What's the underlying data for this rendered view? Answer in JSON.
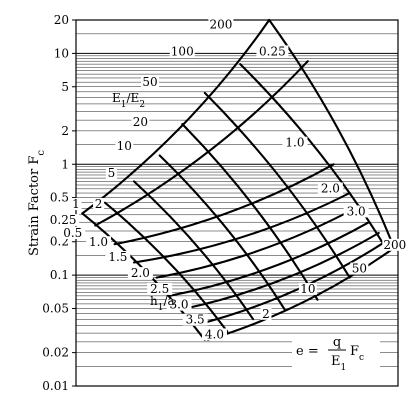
{
  "chart_data": {
    "type": "nomogram",
    "ylabel": "Strain Factor F",
    "ylabel_subscript": "c",
    "y_scale": "log",
    "ylim": [
      0.01,
      20
    ],
    "y_ticks": [
      {
        "value": 20,
        "label": "20"
      },
      {
        "value": 10,
        "label": "10"
      },
      {
        "value": 5,
        "label": "5"
      },
      {
        "value": 2,
        "label": "2"
      },
      {
        "value": 1,
        "label": "1"
      },
      {
        "value": 0.5,
        "label": "0.5"
      },
      {
        "value": 0.2,
        "label": "0.2"
      },
      {
        "value": 0.1,
        "label": "0.1"
      },
      {
        "value": 0.05,
        "label": "0.05"
      },
      {
        "value": 0.02,
        "label": "0.02"
      },
      {
        "value": 0.01,
        "label": "0.01"
      }
    ],
    "grid": true,
    "family_E1E2": {
      "label_main": "E",
      "label_sub1": "1",
      "label_slash": "/E",
      "label_sub2": "2",
      "curves": [
        {
          "label": "200",
          "start": [
            0.6,
            20
          ],
          "end": [
            0.98,
            0.2
          ]
        },
        {
          "label": "100",
          "start": [
            0.51,
            8
          ],
          "end": [
            0.96,
            0.18
          ]
        },
        {
          "label": "50",
          "start": [
            0.4,
            4.4
          ],
          "end": [
            0.85,
            0.095
          ]
        },
        {
          "label": "20",
          "start": [
            0.33,
            2.3
          ],
          "end": [
            0.75,
            0.06
          ]
        },
        {
          "label": "10",
          "start": [
            0.26,
            1.2
          ],
          "end": [
            0.65,
            0.048
          ]
        },
        {
          "label": "5",
          "start": [
            0.18,
            0.7
          ],
          "end": [
            0.55,
            0.04
          ]
        },
        {
          "label": "2",
          "start": [
            0.09,
            0.45
          ],
          "end": [
            0.47,
            0.031
          ]
        },
        {
          "label": "1",
          "start": [
            0.02,
            0.36
          ],
          "end": [
            0.4,
            0.026
          ]
        }
      ]
    },
    "family_h1a": {
      "label_main": "h",
      "label_sub": "1",
      "label_rest": "/a",
      "curves": [
        {
          "label": "0.25",
          "start": [
            0.02,
            0.36
          ],
          "end": [
            0.6,
            20
          ]
        },
        {
          "label": "0.5",
          "start": [
            0.06,
            0.28
          ],
          "end": [
            0.72,
            8.5
          ]
        },
        {
          "label": "1.0",
          "start": [
            0.12,
            0.19
          ],
          "end": [
            0.8,
            1.0
          ]
        },
        {
          "label": "1.5",
          "start": [
            0.18,
            0.13
          ],
          "end": [
            0.85,
            0.55
          ]
        },
        {
          "label": "2.0",
          "start": [
            0.25,
            0.095
          ],
          "end": [
            0.88,
            0.42
          ]
        },
        {
          "label": "2.5",
          "start": [
            0.29,
            0.065
          ],
          "end": [
            0.91,
            0.3
          ]
        },
        {
          "label": "3.0",
          "start": [
            0.34,
            0.05
          ],
          "end": [
            0.94,
            0.24
          ]
        },
        {
          "label": "3.5",
          "start": [
            0.38,
            0.036
          ],
          "end": [
            0.96,
            0.2
          ]
        },
        {
          "label": "4.0",
          "start": [
            0.41,
            0.026
          ],
          "end": [
            0.98,
            0.17
          ]
        }
      ]
    },
    "right_labels": [
      {
        "text": "200",
        "x": 0.99,
        "y": 0.18
      },
      {
        "text": "50",
        "x": 0.88,
        "y": 0.11
      },
      {
        "text": "10",
        "x": 0.72,
        "y": 0.072
      },
      {
        "text": "2",
        "x": 0.59,
        "y": 0.043
      }
    ],
    "mid_labels": [
      {
        "text": "1.0",
        "x": 0.68,
        "y": 1.5
      },
      {
        "text": "2.0",
        "x": 0.79,
        "y": 0.58
      },
      {
        "text": "3.0",
        "x": 0.87,
        "y": 0.36
      }
    ],
    "left_labels": [
      {
        "text": "1",
        "x": 0.0,
        "y": 0.42
      },
      {
        "text": "2",
        "x": 0.07,
        "y": 0.42
      },
      {
        "text": "0.25",
        "x": -0.04,
        "y": 0.3
      },
      {
        "text": "0.5",
        "x": -0.01,
        "y": 0.23
      },
      {
        "text": "1.0",
        "x": 0.07,
        "y": 0.19
      },
      {
        "text": "1.5",
        "x": 0.13,
        "y": 0.14
      },
      {
        "text": "2.0",
        "x": 0.2,
        "y": 0.1
      },
      {
        "text": "2.5",
        "x": 0.26,
        "y": 0.072
      },
      {
        "text": "3.0",
        "x": 0.32,
        "y": 0.052
      },
      {
        "text": "3.5",
        "x": 0.37,
        "y": 0.038
      },
      {
        "text": "4.0",
        "x": 0.43,
        "y": 0.028
      },
      {
        "text": "50",
        "x": 0.23,
        "y": 5.3
      },
      {
        "text": "100",
        "x": 0.33,
        "y": 10
      },
      {
        "text": "200",
        "x": 0.45,
        "y": 17.5
      },
      {
        "text": "0.25",
        "x": 0.61,
        "y": 10
      },
      {
        "text": "20",
        "x": 0.2,
        "y": 2.3
      },
      {
        "text": "10",
        "x": 0.15,
        "y": 1.4
      },
      {
        "text": "5",
        "x": 0.11,
        "y": 0.8
      }
    ],
    "formula": {
      "lhs": "e = ",
      "num": "q",
      "den_main": "E",
      "den_sub": "1",
      "tail_main": "F",
      "tail_sub": "c"
    }
  }
}
